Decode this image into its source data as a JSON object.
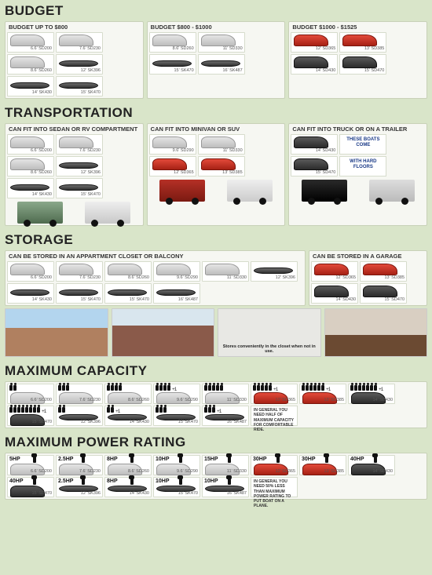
{
  "budget": {
    "heading": "BUDGET",
    "groups": [
      {
        "title": "BUDGET UP TO $800",
        "tiles": [
          {
            "c": "gray",
            "l": "6.6' SD200"
          },
          {
            "c": "gray",
            "l": "7.6' SD230"
          },
          {
            "c": "gray",
            "l": "8.6' SD260"
          },
          {
            "c": "kayak",
            "l": "12' SK396"
          },
          {
            "c": "kayak",
            "l": "14' SK430"
          },
          {
            "c": "kayak",
            "l": "15' SK470"
          }
        ]
      },
      {
        "title": "BUDGET $800 - $1000",
        "tiles": [
          {
            "c": "gray",
            "l": "8.6' SD260"
          },
          {
            "c": "gray",
            "l": "11' SD330"
          },
          {
            "c": "kayak",
            "l": "15' SK470"
          },
          {
            "c": "kayak",
            "l": "16' SK487"
          }
        ]
      },
      {
        "title": "BUDGET $1000 - $1525",
        "tiles": [
          {
            "c": "red",
            "l": "12' SD365"
          },
          {
            "c": "red",
            "l": "13' SD385"
          },
          {
            "c": "dark",
            "l": "14' SD430"
          },
          {
            "c": "dark",
            "l": "15' SD470"
          }
        ]
      }
    ]
  },
  "transport": {
    "heading": "TRANSPORTATION",
    "groups": [
      {
        "title": "CAN FIT INTO SEDAN OR RV COMPARTMENT",
        "tiles": [
          {
            "c": "gray",
            "l": "6.6' SD200"
          },
          {
            "c": "gray",
            "l": "7.6' SD230"
          },
          {
            "c": "gray",
            "l": "8.6' SD260"
          },
          {
            "c": "kayak",
            "l": "12' SK396"
          },
          {
            "c": "kayak",
            "l": "14' SK430"
          },
          {
            "c": "kayak",
            "l": "15' SK470"
          }
        ],
        "vehicles": [
          "car",
          "rv"
        ]
      },
      {
        "title": "CAN FIT INTO MINIVAN OR SUV",
        "tiles": [
          {
            "c": "gray",
            "l": "9.6' SD290"
          },
          {
            "c": "gray",
            "l": "11' SD330"
          },
          {
            "c": "red",
            "l": "12' SD365"
          },
          {
            "c": "red",
            "l": "13' SD385"
          }
        ],
        "vehicles": [
          "van",
          "suv"
        ]
      },
      {
        "title": "CAN FIT INTO TRUCK OR ON A TRAILER",
        "tiles": [
          {
            "c": "dark",
            "l": "14' SD430"
          },
          {
            "note": "THESE BOATS COME"
          },
          {
            "c": "dark",
            "l": "15' SD470"
          },
          {
            "note": "WITH HARD FLOORS"
          }
        ],
        "vehicles": [
          "truck",
          "trailer"
        ]
      }
    ]
  },
  "storage": {
    "heading": "STORAGE",
    "groups": [
      {
        "title": "CAN BE STORED IN AN APPARTMENT CLOSET OR BALCONY",
        "tiles": [
          {
            "c": "gray",
            "l": "6.6' SD200"
          },
          {
            "c": "gray",
            "l": "7.6' SD230"
          },
          {
            "c": "gray",
            "l": "8.6' SD260"
          },
          {
            "c": "gray",
            "l": "9.6' SD290"
          },
          {
            "c": "gray",
            "l": "11' SD330"
          },
          {
            "c": "kayak",
            "l": "12' SK396"
          },
          {
            "c": "kayak",
            "l": "14' SK430"
          },
          {
            "c": "kayak",
            "l": "15' SK470"
          },
          {
            "c": "kayak",
            "l": "15' SK470"
          },
          {
            "c": "kayak",
            "l": "16' SK487"
          }
        ]
      },
      {
        "title": "CAN BE STORED IN A GARAGE",
        "tiles": [
          {
            "c": "red",
            "l": "12' SD365"
          },
          {
            "c": "red",
            "l": "13' SD385"
          },
          {
            "c": "dark",
            "l": "14' SD430"
          },
          {
            "c": "dark",
            "l": "15' SD470"
          }
        ]
      }
    ],
    "closet_caption": "Stores conveniently in the closet when not in use."
  },
  "capacity": {
    "heading": "MAXIMUM CAPACITY",
    "tiles": [
      {
        "p": 2,
        "c": "gray",
        "l": "6.6' SD200"
      },
      {
        "p": 3,
        "c": "gray",
        "l": "7.6' SD230"
      },
      {
        "p": 4,
        "c": "gray",
        "l": "8.6' SD260"
      },
      {
        "p": 4,
        "plus": 1,
        "c": "gray",
        "l": "9.6' SD290"
      },
      {
        "p": 5,
        "c": "gray",
        "l": "11' SD330"
      },
      {
        "p": 5,
        "plus": 1,
        "c": "red",
        "l": "12' SD365"
      },
      {
        "p": 6,
        "plus": 1,
        "c": "red",
        "l": "13' SD385"
      },
      {
        "p": 7,
        "plus": 1,
        "c": "dark",
        "l": "14' SD430"
      },
      {
        "p": 8,
        "plus": 1,
        "c": "dark",
        "l": "15' SD470"
      },
      {
        "p": 2,
        "c": "kayak",
        "l": "12' SK396"
      },
      {
        "p": 2,
        "plus": 1,
        "c": "kayak",
        "l": "14' SK430"
      },
      {
        "p": 3,
        "c": "kayak",
        "l": "15' SK470"
      },
      {
        "p": 3,
        "plus": 1,
        "c": "kayak",
        "l": "16' SK487"
      }
    ],
    "note": "IN GENERAL YOU NEED HALF OF MAXIMUM CAPACITY FOR COMFORTABLE RIDE."
  },
  "power": {
    "heading": "MAXIMUM POWER RATING",
    "tiles": [
      {
        "hp": "5HP",
        "c": "gray",
        "l": "6.6' SD200"
      },
      {
        "hp": "2.5HP",
        "c": "gray",
        "l": "7.6' SD230"
      },
      {
        "hp": "8HP",
        "c": "gray",
        "l": "8.6' SD260"
      },
      {
        "hp": "10HP",
        "c": "gray",
        "l": "9.6' SD290"
      },
      {
        "hp": "15HP",
        "c": "gray",
        "l": "11' SD330"
      },
      {
        "hp": "30HP",
        "c": "red",
        "l": "12' SD365"
      },
      {
        "hp": "30HP",
        "c": "red",
        "l": "13' SD385"
      },
      {
        "hp": "40HP",
        "c": "dark",
        "l": "14' SD430"
      },
      {
        "hp": "40HP",
        "c": "dark",
        "l": "15' SD470"
      },
      {
        "hp": "2.5HP",
        "c": "kayak",
        "l": "12' SK396"
      },
      {
        "hp": "8HP",
        "c": "kayak",
        "l": "14' SK430"
      },
      {
        "hp": "10HP",
        "c": "kayak",
        "l": "15' SK470"
      },
      {
        "hp": "10HP",
        "c": "kayak",
        "l": "16' SK487"
      }
    ],
    "note": "IN GENERAL YOU NEED 50% LESS THAN MAXIMUM POWER RATING TO PUT BOAT ON A PLANE."
  }
}
